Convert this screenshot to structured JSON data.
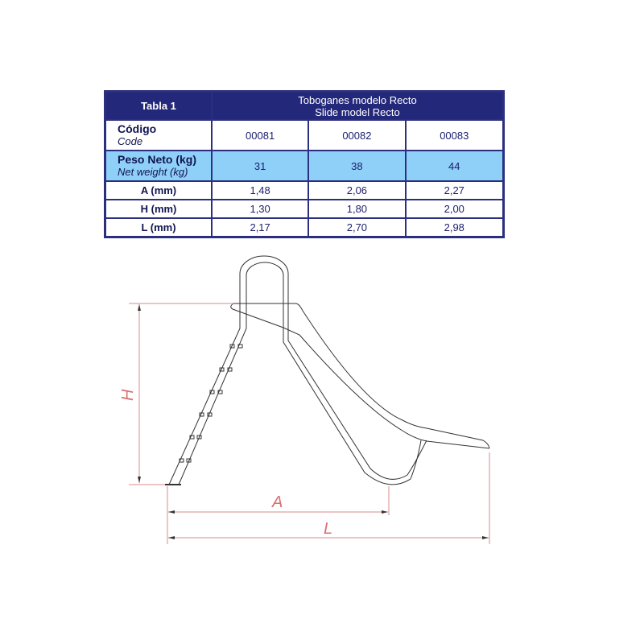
{
  "table": {
    "title": "Tabla 1",
    "heading_es": "Toboganes modelo Recto",
    "heading_en": "Slide model Recto",
    "rows": {
      "code": {
        "label_es": "Código",
        "label_en": "Code",
        "values": [
          "00081",
          "00082",
          "00083"
        ]
      },
      "weight": {
        "label_es": "Peso Neto (kg)",
        "label_en": "Net weight (kg)",
        "values": [
          "31",
          "38",
          "44"
        ]
      },
      "a": {
        "label": "A (mm)",
        "values": [
          "1,48",
          "2,06",
          "2,27"
        ]
      },
      "h": {
        "label": "H (mm)",
        "values": [
          "1,30",
          "1,80",
          "2,00"
        ]
      },
      "l": {
        "label": "L (mm)",
        "values": [
          "2,17",
          "2,70",
          "2,98"
        ]
      }
    }
  },
  "drawing": {
    "label_h": "H",
    "label_a": "A",
    "label_l": "L",
    "dimension_color": "#d98b8b"
  }
}
